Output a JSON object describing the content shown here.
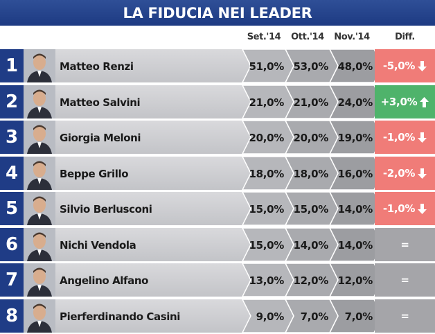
{
  "title": "LA FIDUCIA NEI LEADER",
  "colors": {
    "title_bg": "#1d3a82",
    "number_bg": "#1f3c86",
    "down_bg": "#f07c78",
    "up_bg": "#4fb36b",
    "equal_bg": "#a5a5a9"
  },
  "chart_data": {
    "type": "table",
    "title": "LA FIDUCIA NEI LEADER",
    "columns": [
      "Set.'14",
      "Ott.'14",
      "Nov.'14",
      "Diff."
    ],
    "rows": [
      {
        "rank": "1",
        "name": "Matteo Renzi",
        "values": [
          "51,0%",
          "53,0%",
          "48,0%"
        ],
        "diff": "-5,0%",
        "trend": "down"
      },
      {
        "rank": "2",
        "name": "Matteo Salvini",
        "values": [
          "21,0%",
          "21,0%",
          "24,0%"
        ],
        "diff": "+3,0%",
        "trend": "up"
      },
      {
        "rank": "3",
        "name": "Giorgia Meloni",
        "values": [
          "20,0%",
          "20,0%",
          "19,0%"
        ],
        "diff": "-1,0%",
        "trend": "down"
      },
      {
        "rank": "4",
        "name": "Beppe Grillo",
        "values": [
          "18,0%",
          "18,0%",
          "16,0%"
        ],
        "diff": "-2,0%",
        "trend": "down"
      },
      {
        "rank": "5",
        "name": "Silvio Berlusconi",
        "values": [
          "15,0%",
          "15,0%",
          "14,0%"
        ],
        "diff": "-1,0%",
        "trend": "down"
      },
      {
        "rank": "6",
        "name": "Nichi Vendola",
        "values": [
          "15,0%",
          "14,0%",
          "14,0%"
        ],
        "diff": "=",
        "trend": "equal"
      },
      {
        "rank": "7",
        "name": "Angelino Alfano",
        "values": [
          "13,0%",
          "12,0%",
          "12,0%"
        ],
        "diff": "=",
        "trend": "equal"
      },
      {
        "rank": "8",
        "name": "Pierferdinando Casini",
        "values": [
          "9,0%",
          "7,0%",
          "7,0%"
        ],
        "diff": "=",
        "trend": "equal"
      }
    ]
  }
}
